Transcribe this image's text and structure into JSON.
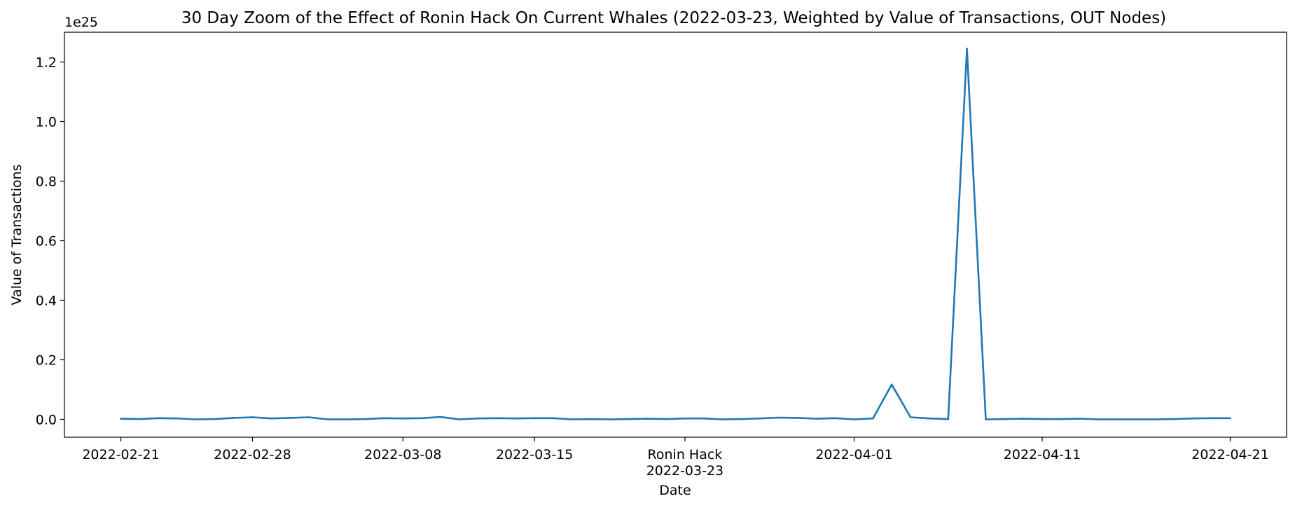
{
  "chart_data": {
    "type": "line",
    "title": "30 Day Zoom of the Effect of Ronin Hack On Current Whales (2022-03-23, Weighted by Value of Transactions, OUT Nodes)",
    "xlabel": "Date",
    "ylabel": "Value of Transactions",
    "y_offset_label": "1e25",
    "y_scale_exponent": 25,
    "y_unit_note": "values in units of 1e25",
    "ylim": [
      -0.06,
      1.3
    ],
    "xlim": [
      "2022-02-18",
      "2022-04-24"
    ],
    "grid": false,
    "line_color": "#1f77b4",
    "y_ticks": [
      {
        "value": 0.0,
        "label": "0.0"
      },
      {
        "value": 0.2,
        "label": "0.2"
      },
      {
        "value": 0.4,
        "label": "0.4"
      },
      {
        "value": 0.6,
        "label": "0.6"
      },
      {
        "value": 0.8,
        "label": "0.8"
      },
      {
        "value": 1.0,
        "label": "1.0"
      },
      {
        "value": 1.2,
        "label": "1.2"
      }
    ],
    "x_ticks": [
      {
        "date": "2022-02-21",
        "label": "2022-02-21"
      },
      {
        "date": "2022-02-28",
        "label": "2022-02-28"
      },
      {
        "date": "2022-03-08",
        "label": "2022-03-08"
      },
      {
        "date": "2022-03-15",
        "label": "2022-03-15"
      },
      {
        "date": "2022-03-23",
        "label": "Ronin Hack",
        "label2": "2022-03-23"
      },
      {
        "date": "2022-04-01",
        "label": "2022-04-01"
      },
      {
        "date": "2022-04-11",
        "label": "2022-04-11"
      },
      {
        "date": "2022-04-21",
        "label": "2022-04-21"
      }
    ],
    "series": [
      {
        "x": [
          "2022-02-21",
          "2022-02-22",
          "2022-02-23",
          "2022-02-24",
          "2022-02-25",
          "2022-02-26",
          "2022-02-27",
          "2022-02-28",
          "2022-03-01",
          "2022-03-02",
          "2022-03-03",
          "2022-03-04",
          "2022-03-05",
          "2022-03-06",
          "2022-03-07",
          "2022-03-08",
          "2022-03-09",
          "2022-03-10",
          "2022-03-11",
          "2022-03-12",
          "2022-03-13",
          "2022-03-14",
          "2022-03-15",
          "2022-03-16",
          "2022-03-17",
          "2022-03-18",
          "2022-03-19",
          "2022-03-20",
          "2022-03-21",
          "2022-03-22",
          "2022-03-23",
          "2022-03-24",
          "2022-03-25",
          "2022-03-26",
          "2022-03-27",
          "2022-03-28",
          "2022-03-29",
          "2022-03-30",
          "2022-03-31",
          "2022-04-01",
          "2022-04-02",
          "2022-04-03",
          "2022-04-04",
          "2022-04-05",
          "2022-04-06",
          "2022-04-07",
          "2022-04-08",
          "2022-04-09",
          "2022-04-10",
          "2022-04-11",
          "2022-04-12",
          "2022-04-13",
          "2022-04-14",
          "2022-04-15",
          "2022-04-16",
          "2022-04-17",
          "2022-04-18",
          "2022-04-19",
          "2022-04-20",
          "2022-04-21"
        ],
        "values": [
          0.002,
          0.001,
          0.004,
          0.003,
          0.0,
          0.001,
          0.005,
          0.007,
          0.003,
          0.005,
          0.007,
          0.0,
          0.0,
          0.001,
          0.004,
          0.003,
          0.004,
          0.008,
          0.0,
          0.003,
          0.004,
          0.003,
          0.004,
          0.004,
          0.0,
          0.001,
          0.0,
          0.001,
          0.002,
          0.001,
          0.003,
          0.003,
          0.0,
          0.001,
          0.003,
          0.006,
          0.005,
          0.002,
          0.004,
          0.0,
          0.003,
          0.117,
          0.007,
          0.003,
          0.001,
          1.245,
          0.0,
          0.001,
          0.002,
          0.001,
          0.001,
          0.002,
          0.0,
          0.0,
          0.0,
          0.0,
          0.001,
          0.003,
          0.004,
          0.004
        ]
      }
    ]
  }
}
